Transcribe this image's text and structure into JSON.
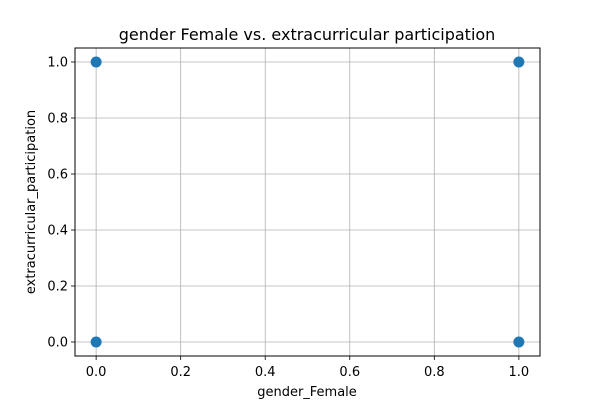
{
  "chart_data": {
    "type": "scatter",
    "title": "gender Female vs. extracurricular participation",
    "xlabel": "gender_Female",
    "ylabel": "extracurricular_participation",
    "xlim": [
      -0.05,
      1.05
    ],
    "ylim": [
      -0.05,
      1.05
    ],
    "x_ticks": [
      0.0,
      0.2,
      0.4,
      0.6,
      0.8,
      1.0
    ],
    "x_tick_labels": [
      "0.0",
      "0.2",
      "0.4",
      "0.6",
      "0.8",
      "1.0"
    ],
    "y_ticks": [
      0.0,
      0.2,
      0.4,
      0.6,
      0.8,
      1.0
    ],
    "y_tick_labels": [
      "0.0",
      "0.2",
      "0.4",
      "0.6",
      "0.8",
      "1.0"
    ],
    "grid": true,
    "legend": "none",
    "point_color": "#1f77b4",
    "points": [
      {
        "x": 0.0,
        "y": 1.0
      },
      {
        "x": 1.0,
        "y": 1.0
      },
      {
        "x": 0.0,
        "y": 0.0
      },
      {
        "x": 1.0,
        "y": 0.0
      }
    ]
  }
}
